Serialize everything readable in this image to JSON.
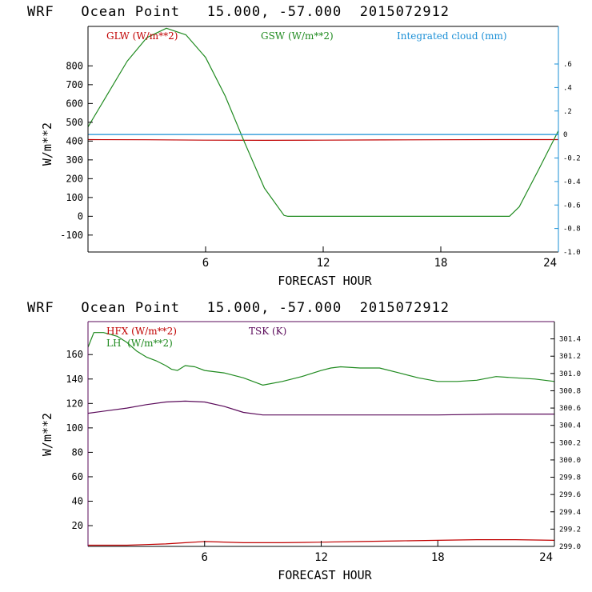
{
  "colors": {
    "red": "#c00000",
    "green": "#1f8a1f",
    "blue": "#1a8fd6",
    "purple": "#5a0a5a",
    "axis": "#000000"
  },
  "chart_data": [
    {
      "type": "line",
      "title": "WRF   Ocean Point   15.000, -57.000  2015072912",
      "xlabel": "FORECAST HOUR",
      "ylabel": "W/m**2",
      "xlim": [
        0,
        24
      ],
      "ylim": [
        -190,
        1010
      ],
      "xticks": [
        "6",
        "12",
        "18",
        "24"
      ],
      "yticks": [
        "800",
        "700",
        "600",
        "500",
        "400",
        "300",
        "200",
        "100",
        "0",
        "-100"
      ],
      "right_ylim": [
        -1.0,
        0.92
      ],
      "right_yticks": [
        ".6",
        ".4",
        ".2",
        "0",
        "-0.2",
        "-0.4",
        "-0.6",
        "-0.8",
        "-1.0"
      ],
      "legend": {
        "left": "GLW (W/m**2)",
        "middle": "GSW (W/m**2)",
        "right": "Integrated cloud (mm)"
      },
      "series": [
        {
          "name": "GLW (W/m**2)",
          "axis": "left",
          "x": [
            0,
            3,
            6,
            9,
            12,
            15,
            18,
            21,
            24
          ],
          "values": [
            408,
            407,
            405,
            404,
            405,
            406,
            407,
            408,
            408
          ]
        },
        {
          "name": "GSW (W/m**2)",
          "axis": "left",
          "x": [
            0,
            1,
            2,
            3,
            4,
            5,
            6,
            7,
            8,
            9,
            10,
            10.2,
            12,
            14,
            16,
            18,
            20,
            21.5,
            22,
            23,
            24
          ],
          "values": [
            475,
            650,
            825,
            950,
            1000,
            965,
            845,
            640,
            390,
            150,
            5,
            0,
            0,
            0,
            0,
            0,
            0,
            0,
            50,
            250,
            455
          ]
        },
        {
          "name": "Integrated cloud (mm)",
          "axis": "right",
          "x": [
            0,
            24
          ],
          "values": [
            0.0,
            0.0
          ]
        }
      ]
    },
    {
      "type": "line",
      "title": "WRF   Ocean Point   15.000, -57.000  2015072912",
      "xlabel": "FORECAST HOUR",
      "ylabel": "W/m**2",
      "xlim": [
        0,
        24
      ],
      "ylim": [
        3,
        187
      ],
      "xticks": [
        "6",
        "12",
        "18",
        "24"
      ],
      "yticks": [
        "160",
        "140",
        "120",
        "100",
        "80",
        "60",
        "40",
        "20"
      ],
      "right_ylim": [
        299.0,
        301.6
      ],
      "right_yticks": [
        "301.4",
        "301.2",
        "301.0",
        "300.8",
        "300.6",
        "300.4",
        "300.2",
        "300.0",
        "299.8",
        "299.6",
        "299.4",
        "299.2",
        "299.0"
      ],
      "legend": {
        "hfx": "HFX (W/m**2)",
        "lh": "LH  (W/m**2)",
        "tsk": "TSK (K)"
      },
      "series": [
        {
          "name": "HFX (W/m**2)",
          "axis": "left",
          "x": [
            0,
            2,
            3,
            4,
            5,
            6,
            8,
            10,
            12,
            14,
            16,
            18,
            20,
            22,
            24
          ],
          "values": [
            4,
            4,
            4.5,
            5,
            6,
            7,
            6,
            6,
            6.5,
            7,
            7.5,
            8,
            8.5,
            8.5,
            8
          ]
        },
        {
          "name": "LH  (W/m**2)",
          "axis": "left",
          "x": [
            0,
            0.3,
            0.8,
            1.5,
            2,
            2.5,
            3,
            3.5,
            4,
            4.3,
            4.6,
            5,
            5.5,
            6,
            7,
            8,
            9,
            10,
            11,
            12,
            12.5,
            13,
            14,
            15,
            16,
            17,
            18,
            19,
            20,
            21,
            22,
            23,
            24
          ],
          "values": [
            166,
            178,
            178,
            175,
            170,
            163,
            158,
            155,
            151,
            148,
            147,
            151,
            150,
            147,
            145,
            141,
            135,
            138,
            142,
            147,
            149,
            150,
            149,
            149,
            145,
            141,
            138,
            138,
            139,
            142,
            141,
            140,
            138
          ]
        },
        {
          "name": "TSK (K)",
          "axis": "right",
          "x": [
            0,
            2,
            3,
            4,
            5,
            6,
            7,
            8,
            9,
            12,
            15,
            18,
            21,
            24
          ],
          "values": [
            300.54,
            300.6,
            300.64,
            300.67,
            300.68,
            300.67,
            300.62,
            300.55,
            300.52,
            300.52,
            300.52,
            300.52,
            300.53,
            300.53
          ]
        }
      ]
    }
  ]
}
